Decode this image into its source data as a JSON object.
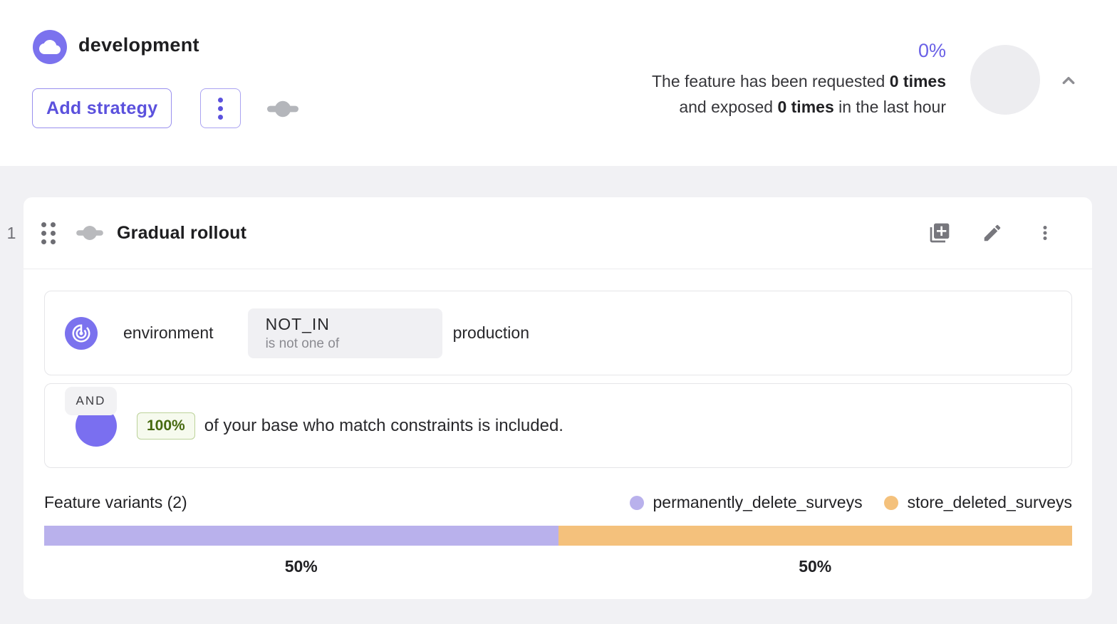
{
  "header": {
    "environment_name": "development",
    "add_strategy_label": "Add strategy",
    "metrics": {
      "percentage": "0%",
      "line1_prefix": "The feature has been requested ",
      "line1_bold": "0 times",
      "line2_prefix": "and exposed ",
      "line2_bold": "0 times",
      "line2_suffix": " in the last hour"
    }
  },
  "strategy": {
    "index": "1",
    "title": "Gradual rollout",
    "constraint": {
      "context_field": "environment",
      "operator": "NOT_IN",
      "operator_description": "is not one of",
      "value": "production"
    },
    "conjunction": "AND",
    "rollout": {
      "percentage": "100%",
      "description": "of your base who match constraints is included."
    },
    "variants": {
      "heading": "Feature variants (2)",
      "items": [
        {
          "name": "permanently_delete_surveys",
          "percent": 50,
          "label": "50%",
          "color": "#b9b1ec"
        },
        {
          "name": "store_deleted_surveys",
          "percent": 50,
          "label": "50%",
          "color": "#f4c17c"
        }
      ]
    }
  },
  "colors": {
    "page_background": "#f1f1f4",
    "primary_purple": "#5b51dd",
    "icon_badge_purple": "#7b72ee",
    "rollout_circle_purple": "#7a6ff0",
    "variant_purple": "#b9b1ec",
    "variant_orange": "#f4c17c",
    "percentage_chip_text": "#46690f",
    "percentage_chip_bg": "#f6faee",
    "percentage_chip_border": "#bcd29a",
    "metric_percentage_purple": "#6a61e6"
  },
  "icons": {
    "cloud-icon": "white cloud on purple circle",
    "kebab-menu-icon": "three vertical dots",
    "rollout-slider-icon": "horizontal bar with center knob",
    "drag-handle-icon": "six dot grid",
    "copy-strategy-icon": "stacked squares with plus",
    "edit-icon": "pencil",
    "chevron-up-icon": "upward chevron",
    "constraint-target-icon": "concentric target with stem"
  }
}
